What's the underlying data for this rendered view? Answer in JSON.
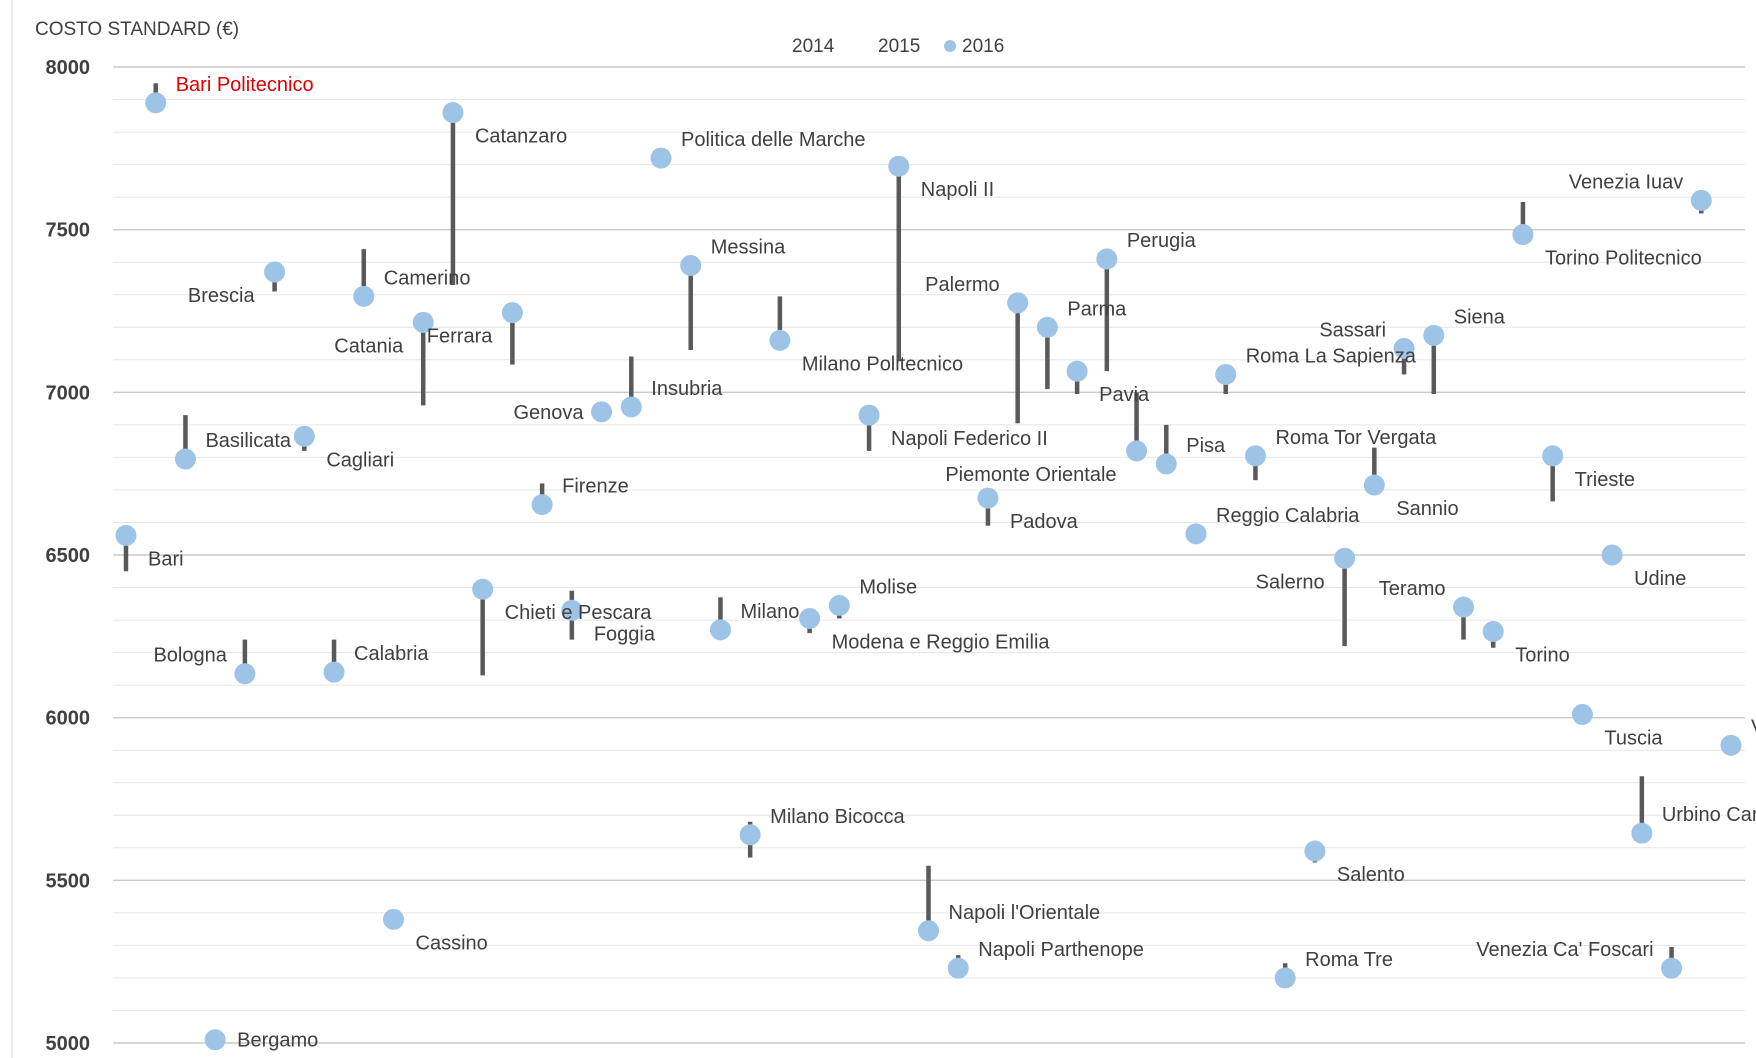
{
  "chart_data": {
    "type": "scatter",
    "title": "",
    "ylabel": "COSTO STANDARD (€)",
    "xlabel": "",
    "ylim": [
      5000,
      8000
    ],
    "yticks": [
      5000,
      5500,
      6000,
      6500,
      7000,
      7500,
      8000
    ],
    "grid": true,
    "legend_position": "top-center",
    "colors": {
      "marker_2016": "#9dc3e6",
      "range_line": "#595959",
      "highlight_label": "#e00000",
      "label": "#404040"
    },
    "series": [
      {
        "name": "2014"
      },
      {
        "name": "2015"
      },
      {
        "name": "2016"
      }
    ],
    "points": [
      {
        "label": "Bari",
        "x": 1,
        "y_2016": 6560,
        "range": [
          6450,
          6560
        ],
        "label_side": "right-below"
      },
      {
        "label": "Bari Politecnico",
        "x": 2,
        "y_2016": 7890,
        "range": [
          7890,
          7950
        ],
        "label_side": "right-above",
        "highlight": true
      },
      {
        "label": "Basilicata",
        "x": 3,
        "y_2016": 6795,
        "range": [
          6795,
          6930
        ],
        "label_side": "right-above"
      },
      {
        "label": "Bergamo",
        "x": 4,
        "y_2016": 5010,
        "range": [
          5010,
          5010
        ],
        "label_side": "right"
      },
      {
        "label": "Bologna",
        "x": 5,
        "y_2016": 6135,
        "range": [
          6135,
          6240
        ],
        "label_side": "left-above"
      },
      {
        "label": "Brescia",
        "x": 6,
        "y_2016": 7370,
        "range": [
          7310,
          7370
        ],
        "label_side": "left-below"
      },
      {
        "label": "Cagliari",
        "x": 7,
        "y_2016": 6865,
        "range": [
          6820,
          6865
        ],
        "label_side": "right-below"
      },
      {
        "label": "Calabria",
        "x": 8,
        "y_2016": 6140,
        "range": [
          6140,
          6240
        ],
        "label_side": "right-above"
      },
      {
        "label": "Camerino",
        "x": 9,
        "y_2016": 7295,
        "range": [
          7295,
          7440
        ],
        "label_side": "right-above"
      },
      {
        "label": "Cassino",
        "x": 10,
        "y_2016": 5380,
        "range": [
          5380,
          5380
        ],
        "label_side": "right-below"
      },
      {
        "label": "Catania",
        "x": 11,
        "y_2016": 7215,
        "range": [
          6960,
          7215
        ],
        "label_side": "left-below"
      },
      {
        "label": "Catanzaro",
        "x": 12,
        "y_2016": 7860,
        "range": [
          7330,
          7860
        ],
        "label_side": "right-below"
      },
      {
        "label": "Chieti e Pescara",
        "x": 13,
        "y_2016": 6395,
        "range": [
          6130,
          6395
        ],
        "label_side": "right-below"
      },
      {
        "label": "Ferrara",
        "x": 14,
        "y_2016": 7245,
        "range": [
          7085,
          7245
        ],
        "label_side": "left-below"
      },
      {
        "label": "Firenze",
        "x": 15,
        "y_2016": 6655,
        "range": [
          6655,
          6720
        ],
        "label_side": "right-above"
      },
      {
        "label": "Foggia",
        "x": 16,
        "y_2016": 6330,
        "range": [
          6240,
          6390
        ],
        "label_side": "right-below"
      },
      {
        "label": "Genova",
        "x": 17,
        "y_2016": 6940,
        "range": [
          6940,
          6940
        ],
        "label_side": "left"
      },
      {
        "label": "Insubria",
        "x": 18,
        "y_2016": 6955,
        "range": [
          6955,
          7110
        ],
        "label_side": "right-above"
      },
      {
        "label": "Politica delle Marche",
        "x": 19,
        "y_2016": 7720,
        "range": [
          7720,
          7720
        ],
        "label_side": "right-above"
      },
      {
        "label": "Messina",
        "x": 20,
        "y_2016": 7390,
        "range": [
          7130,
          7390
        ],
        "label_side": "right-above"
      },
      {
        "label": "Milano",
        "x": 21,
        "y_2016": 6270,
        "range": [
          6270,
          6370
        ],
        "label_side": "right-above"
      },
      {
        "label": "Milano Bicocca",
        "x": 22,
        "y_2016": 5640,
        "range": [
          5570,
          5680
        ],
        "label_side": "right-above"
      },
      {
        "label": "Milano Politecnico",
        "x": 23,
        "y_2016": 7160,
        "range": [
          7160,
          7295
        ],
        "label_side": "right-below"
      },
      {
        "label": "Modena e Reggio Emilia",
        "x": 24,
        "y_2016": 6305,
        "range": [
          6260,
          6305
        ],
        "label_side": "right-below"
      },
      {
        "label": "Molise",
        "x": 25,
        "y_2016": 6345,
        "range": [
          6305,
          6345
        ],
        "label_side": "right-above"
      },
      {
        "label": "Napoli Federico II",
        "x": 26,
        "y_2016": 6930,
        "range": [
          6820,
          6930
        ],
        "label_side": "right-below"
      },
      {
        "label": "Napoli II",
        "x": 27,
        "y_2016": 7695,
        "range": [
          7095,
          7695
        ],
        "label_side": "right-below"
      },
      {
        "label": "Napoli l'Orientale",
        "x": 28,
        "y_2016": 5345,
        "range": [
          5345,
          5545
        ],
        "label_side": "right-above"
      },
      {
        "label": "Napoli Parthenope",
        "x": 29,
        "y_2016": 5230,
        "range": [
          5230,
          5270
        ],
        "label_side": "right-above"
      },
      {
        "label": "Padova",
        "x": 30,
        "y_2016": 6675,
        "range": [
          6590,
          6675
        ],
        "label_side": "right-below"
      },
      {
        "label": "Palermo",
        "x": 31,
        "y_2016": 7275,
        "range": [
          6905,
          7275
        ],
        "label_side": "left-above"
      },
      {
        "label": "Parma",
        "x": 32,
        "y_2016": 7200,
        "range": [
          7010,
          7200
        ],
        "label_side": "right-above"
      },
      {
        "label": "Pavia",
        "x": 33,
        "y_2016": 7065,
        "range": [
          6995,
          7065
        ],
        "label_side": "right-below"
      },
      {
        "label": "Perugia",
        "x": 34,
        "y_2016": 7410,
        "range": [
          7065,
          7410
        ],
        "label_side": "right-above"
      },
      {
        "label": "Piemonte Orientale",
        "x": 35,
        "y_2016": 6820,
        "range": [
          6820,
          7000
        ],
        "label_side": "left-below"
      },
      {
        "label": "Pisa",
        "x": 36,
        "y_2016": 6780,
        "range": [
          6780,
          6900
        ],
        "label_side": "right-above"
      },
      {
        "label": "Reggio Calabria",
        "x": 37,
        "y_2016": 6565,
        "range": [
          6565,
          6565
        ],
        "label_side": "right-above"
      },
      {
        "label": "Roma La Sapienza",
        "x": 38,
        "y_2016": 7055,
        "range": [
          6995,
          7055
        ],
        "label_side": "right-above"
      },
      {
        "label": "Roma Tor Vergata",
        "x": 39,
        "y_2016": 6805,
        "range": [
          6730,
          6805
        ],
        "label_side": "right-above"
      },
      {
        "label": "Roma Tre",
        "x": 40,
        "y_2016": 5200,
        "range": [
          5200,
          5245
        ],
        "label_side": "right-above"
      },
      {
        "label": "Salento",
        "x": 41,
        "y_2016": 5590,
        "range": [
          5555,
          5590
        ],
        "label_side": "right-below"
      },
      {
        "label": "Salerno",
        "x": 42,
        "y_2016": 6490,
        "range": [
          6220,
          6490
        ],
        "label_side": "left-below"
      },
      {
        "label": "Sannio",
        "x": 43,
        "y_2016": 6715,
        "range": [
          6715,
          6830
        ],
        "label_side": "right-below"
      },
      {
        "label": "Sassari",
        "x": 44,
        "y_2016": 7135,
        "range": [
          7055,
          7135
        ],
        "label_side": "left-above"
      },
      {
        "label": "Siena",
        "x": 45,
        "y_2016": 7175,
        "range": [
          6995,
          7175
        ],
        "label_side": "right-above"
      },
      {
        "label": "Teramo",
        "x": 46,
        "y_2016": 6340,
        "range": [
          6240,
          6340
        ],
        "label_side": "left-above"
      },
      {
        "label": "Torino",
        "x": 47,
        "y_2016": 6265,
        "range": [
          6215,
          6265
        ],
        "label_side": "right-below"
      },
      {
        "label": "Torino Politecnico",
        "x": 48,
        "y_2016": 7485,
        "range": [
          7485,
          7585
        ],
        "label_side": "right-below"
      },
      {
        "label": "Trieste",
        "x": 49,
        "y_2016": 6805,
        "range": [
          6665,
          6805
        ],
        "label_side": "right-below"
      },
      {
        "label": "Tuscia",
        "x": 50,
        "y_2016": 6010,
        "range": [
          6010,
          6010
        ],
        "label_side": "right-below"
      },
      {
        "label": "Udine",
        "x": 51,
        "y_2016": 6500,
        "range": [
          6500,
          6500
        ],
        "label_side": "right-below"
      },
      {
        "label": "Urbino Carlo Bo",
        "x": 52,
        "y_2016": 5645,
        "range": [
          5645,
          5820
        ],
        "label_side": "right-above"
      },
      {
        "label": "Venezia Ca' Foscari",
        "x": 53,
        "y_2016": 5230,
        "range": [
          5230,
          5295
        ],
        "label_side": "left-above"
      },
      {
        "label": "Venezia Iuav",
        "x": 54,
        "y_2016": 7590,
        "range": [
          7550,
          7590
        ],
        "label_side": "left-above"
      },
      {
        "label": "Verona",
        "x": 55,
        "y_2016": 5915,
        "range": [
          5915,
          5915
        ],
        "label_side": "right-above"
      }
    ]
  }
}
